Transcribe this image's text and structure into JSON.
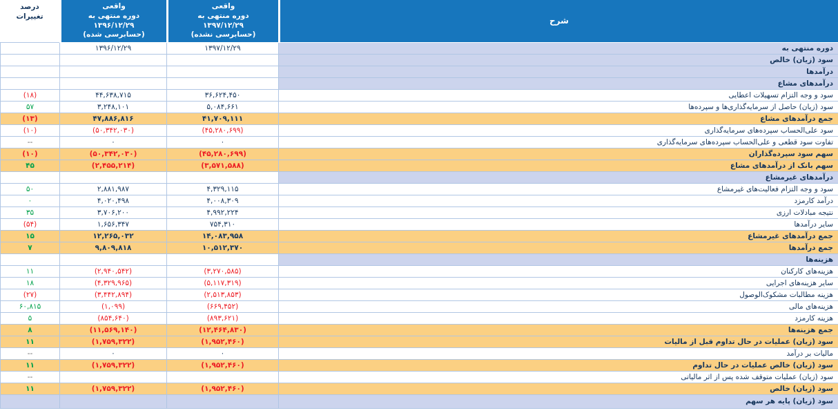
{
  "colors": {
    "header_blue": "#1776BD",
    "section_lavender": "#CCD4ED",
    "subtotal_orange": "#FBD083",
    "negative_red": "#EC1B23",
    "positive_green": "#00A14B",
    "text_navy": "#17375D",
    "grid_border": "#B0C6E4"
  },
  "table": {
    "headers": {
      "desc": "شرح",
      "col1397": "واقعی\nدوره منتهی به\n۱۳۹۷/۱۲/۲۹\n(حسابرسی نشده)",
      "col1396": "واقعی\nدوره منتهی به\n۱۳۹۶/۱۲/۲۹\n(حسابرسی شده)",
      "pct": "درصد\nتغییرات"
    },
    "rows": [
      {
        "label": "دوره منتهی به",
        "type": "section",
        "v1397": "۱۳۹۷/۱۲/۲۹",
        "v1396": "۱۳۹۶/۱۲/۲۹",
        "pct": ""
      },
      {
        "label": "سود (زیان) خالص",
        "type": "section",
        "v1397": "",
        "v1396": "",
        "pct": ""
      },
      {
        "label": "درآمدها",
        "type": "section",
        "v1397": "",
        "v1396": "",
        "pct": ""
      },
      {
        "label": "درآمدهای مشاع",
        "type": "section",
        "v1397": "",
        "v1396": "",
        "pct": ""
      },
      {
        "label": "سود و وجه التزام تسهیلات اعطایی",
        "type": "data",
        "v1397": "۳۶,۶۲۴,۴۵۰",
        "v1396": "۴۴,۶۳۸,۷۱۵",
        "pct": "(۱۸)"
      },
      {
        "label": "سود (زیان) حاصل از سرمایه‌گذاری‌ها و سپرده‌ها",
        "type": "data",
        "v1397": "۵,۰۸۴,۶۶۱",
        "v1396": "۳,۲۴۸,۱۰۱",
        "pct": "۵۷"
      },
      {
        "label": "جمع درآمدهای مشاع",
        "type": "subtotal",
        "v1397": "۴۱,۷۰۹,۱۱۱",
        "v1396": "۴۷,۸۸۶,۸۱۶",
        "pct": "(۱۳)"
      },
      {
        "label": "سود علی‌الحساب سپرده‌های سرمایه‌گذاری",
        "type": "data",
        "v1397": "(۴۵,۲۸۰,۶۹۹)",
        "v1396": "(۵۰,۳۴۲,۰۳۰)",
        "pct": "(۱۰)"
      },
      {
        "label": "تفاوت سود قطعی و علی‌الحساب سپرده‌های سرمایه‌گذاری",
        "type": "data",
        "v1397": "۰",
        "v1396": "۰",
        "pct": "--"
      },
      {
        "label": "سهم سود سپرده‌گذاران",
        "type": "subtotal",
        "v1397": "(۴۵,۲۸۰,۶۹۹)",
        "v1396": "(۵۰,۳۴۲,۰۳۰)",
        "pct": "(۱۰)"
      },
      {
        "label": "سهم بانک از درآمدهای مشاع",
        "type": "subtotal",
        "v1397": "(۳,۵۷۱,۵۸۸)",
        "v1396": "(۲,۴۵۵,۲۱۴)",
        "pct": "۴۵"
      },
      {
        "label": "درآمدهای غیرمشاع",
        "type": "section",
        "v1397": "",
        "v1396": "",
        "pct": ""
      },
      {
        "label": "سود و وجه التزام فعالیت‌های غیرمشاع",
        "type": "data",
        "v1397": "۴,۳۲۹,۱۱۵",
        "v1396": "۲,۸۸۱,۹۸۷",
        "pct": "۵۰"
      },
      {
        "label": "درآمد کارمزد",
        "type": "data",
        "v1397": "۴,۰۰۸,۳۰۹",
        "v1396": "۴,۰۲۰,۴۹۸",
        "pct": "۰"
      },
      {
        "label": "نتیجه مبادلات ارزی",
        "type": "data",
        "v1397": "۴,۹۹۲,۲۲۴",
        "v1396": "۳,۷۰۶,۲۰۰",
        "pct": "۳۵"
      },
      {
        "label": "سایر درآمدها",
        "type": "data",
        "v1397": "۷۵۴,۳۱۰",
        "v1396": "۱,۶۵۶,۳۴۷",
        "pct": "(۵۴)"
      },
      {
        "label": "جمع درآمدهای غیرمشاع",
        "type": "subtotal",
        "v1397": "۱۴,۰۸۳,۹۵۸",
        "v1396": "۱۲,۲۶۵,۰۳۲",
        "pct": "۱۵"
      },
      {
        "label": "جمع درآمدها",
        "type": "subtotal",
        "v1397": "۱۰,۵۱۲,۳۷۰",
        "v1396": "۹,۸۰۹,۸۱۸",
        "pct": "۷"
      },
      {
        "label": "هزینه‌ها",
        "type": "section",
        "v1397": "",
        "v1396": "",
        "pct": ""
      },
      {
        "label": "هزینه‌های کارکنان",
        "type": "data",
        "v1397": "(۳,۲۷۰,۵۸۵)",
        "v1396": "(۲,۹۴۰,۵۴۲)",
        "pct": "۱۱"
      },
      {
        "label": "سایر هزینه‌های اجرایی",
        "type": "data",
        "v1397": "(۵,۱۱۷,۳۱۹)",
        "v1396": "(۴,۳۲۹,۹۶۵)",
        "pct": "۱۸"
      },
      {
        "label": "هزینه مطالبات مشکوک‌الوصول",
        "type": "data",
        "v1397": "(۲,۵۱۳,۸۵۳)",
        "v1396": "(۳,۴۴۲,۸۹۴)",
        "pct": "(۲۷)"
      },
      {
        "label": "هزینه‌های مالی",
        "type": "data",
        "v1397": "(۶۶۹,۴۵۲)",
        "v1396": "(۱,۰۹۹)",
        "pct": "۶۰,۸۱۵"
      },
      {
        "label": "هزینه کارمزد",
        "type": "data",
        "v1397": "(۸۹۳,۶۲۱)",
        "v1396": "(۸۵۴,۶۴۰)",
        "pct": "۵"
      },
      {
        "label": "جمع هزینه‌ها",
        "type": "subtotal",
        "v1397": "(۱۲,۴۶۴,۸۳۰)",
        "v1396": "(۱۱,۵۶۹,۱۴۰)",
        "pct": "۸"
      },
      {
        "label": "سود (زیان) عملیات در حال تداوم قبل از مالیات",
        "type": "subtotal",
        "v1397": "(۱,۹۵۲,۴۶۰)",
        "v1396": "(۱,۷۵۹,۳۲۲)",
        "pct": "۱۱"
      },
      {
        "label": "مالیات بر درآمد",
        "type": "data",
        "v1397": "۰",
        "v1396": "۰",
        "pct": "--"
      },
      {
        "label": "سود (زیان) خالص عملیات در حال تداوم",
        "type": "subtotal",
        "v1397": "(۱,۹۵۲,۴۶۰)",
        "v1396": "(۱,۷۵۹,۳۲۲)",
        "pct": "۱۱"
      },
      {
        "label": "سود (زیان) عملیات متوقف شده پس از اثر مالیاتی",
        "type": "data",
        "v1397": "",
        "v1396": "",
        "pct": "--"
      },
      {
        "label": "سود (زیان) خالص",
        "type": "subtotal",
        "v1397": "(۱,۹۵۲,۴۶۰)",
        "v1396": "(۱,۷۵۹,۳۲۲)",
        "pct": "۱۱"
      },
      {
        "label": "سود (زیان) پایه هر سهم",
        "type": "section_full",
        "v1397": "",
        "v1396": "",
        "pct": ""
      }
    ]
  }
}
